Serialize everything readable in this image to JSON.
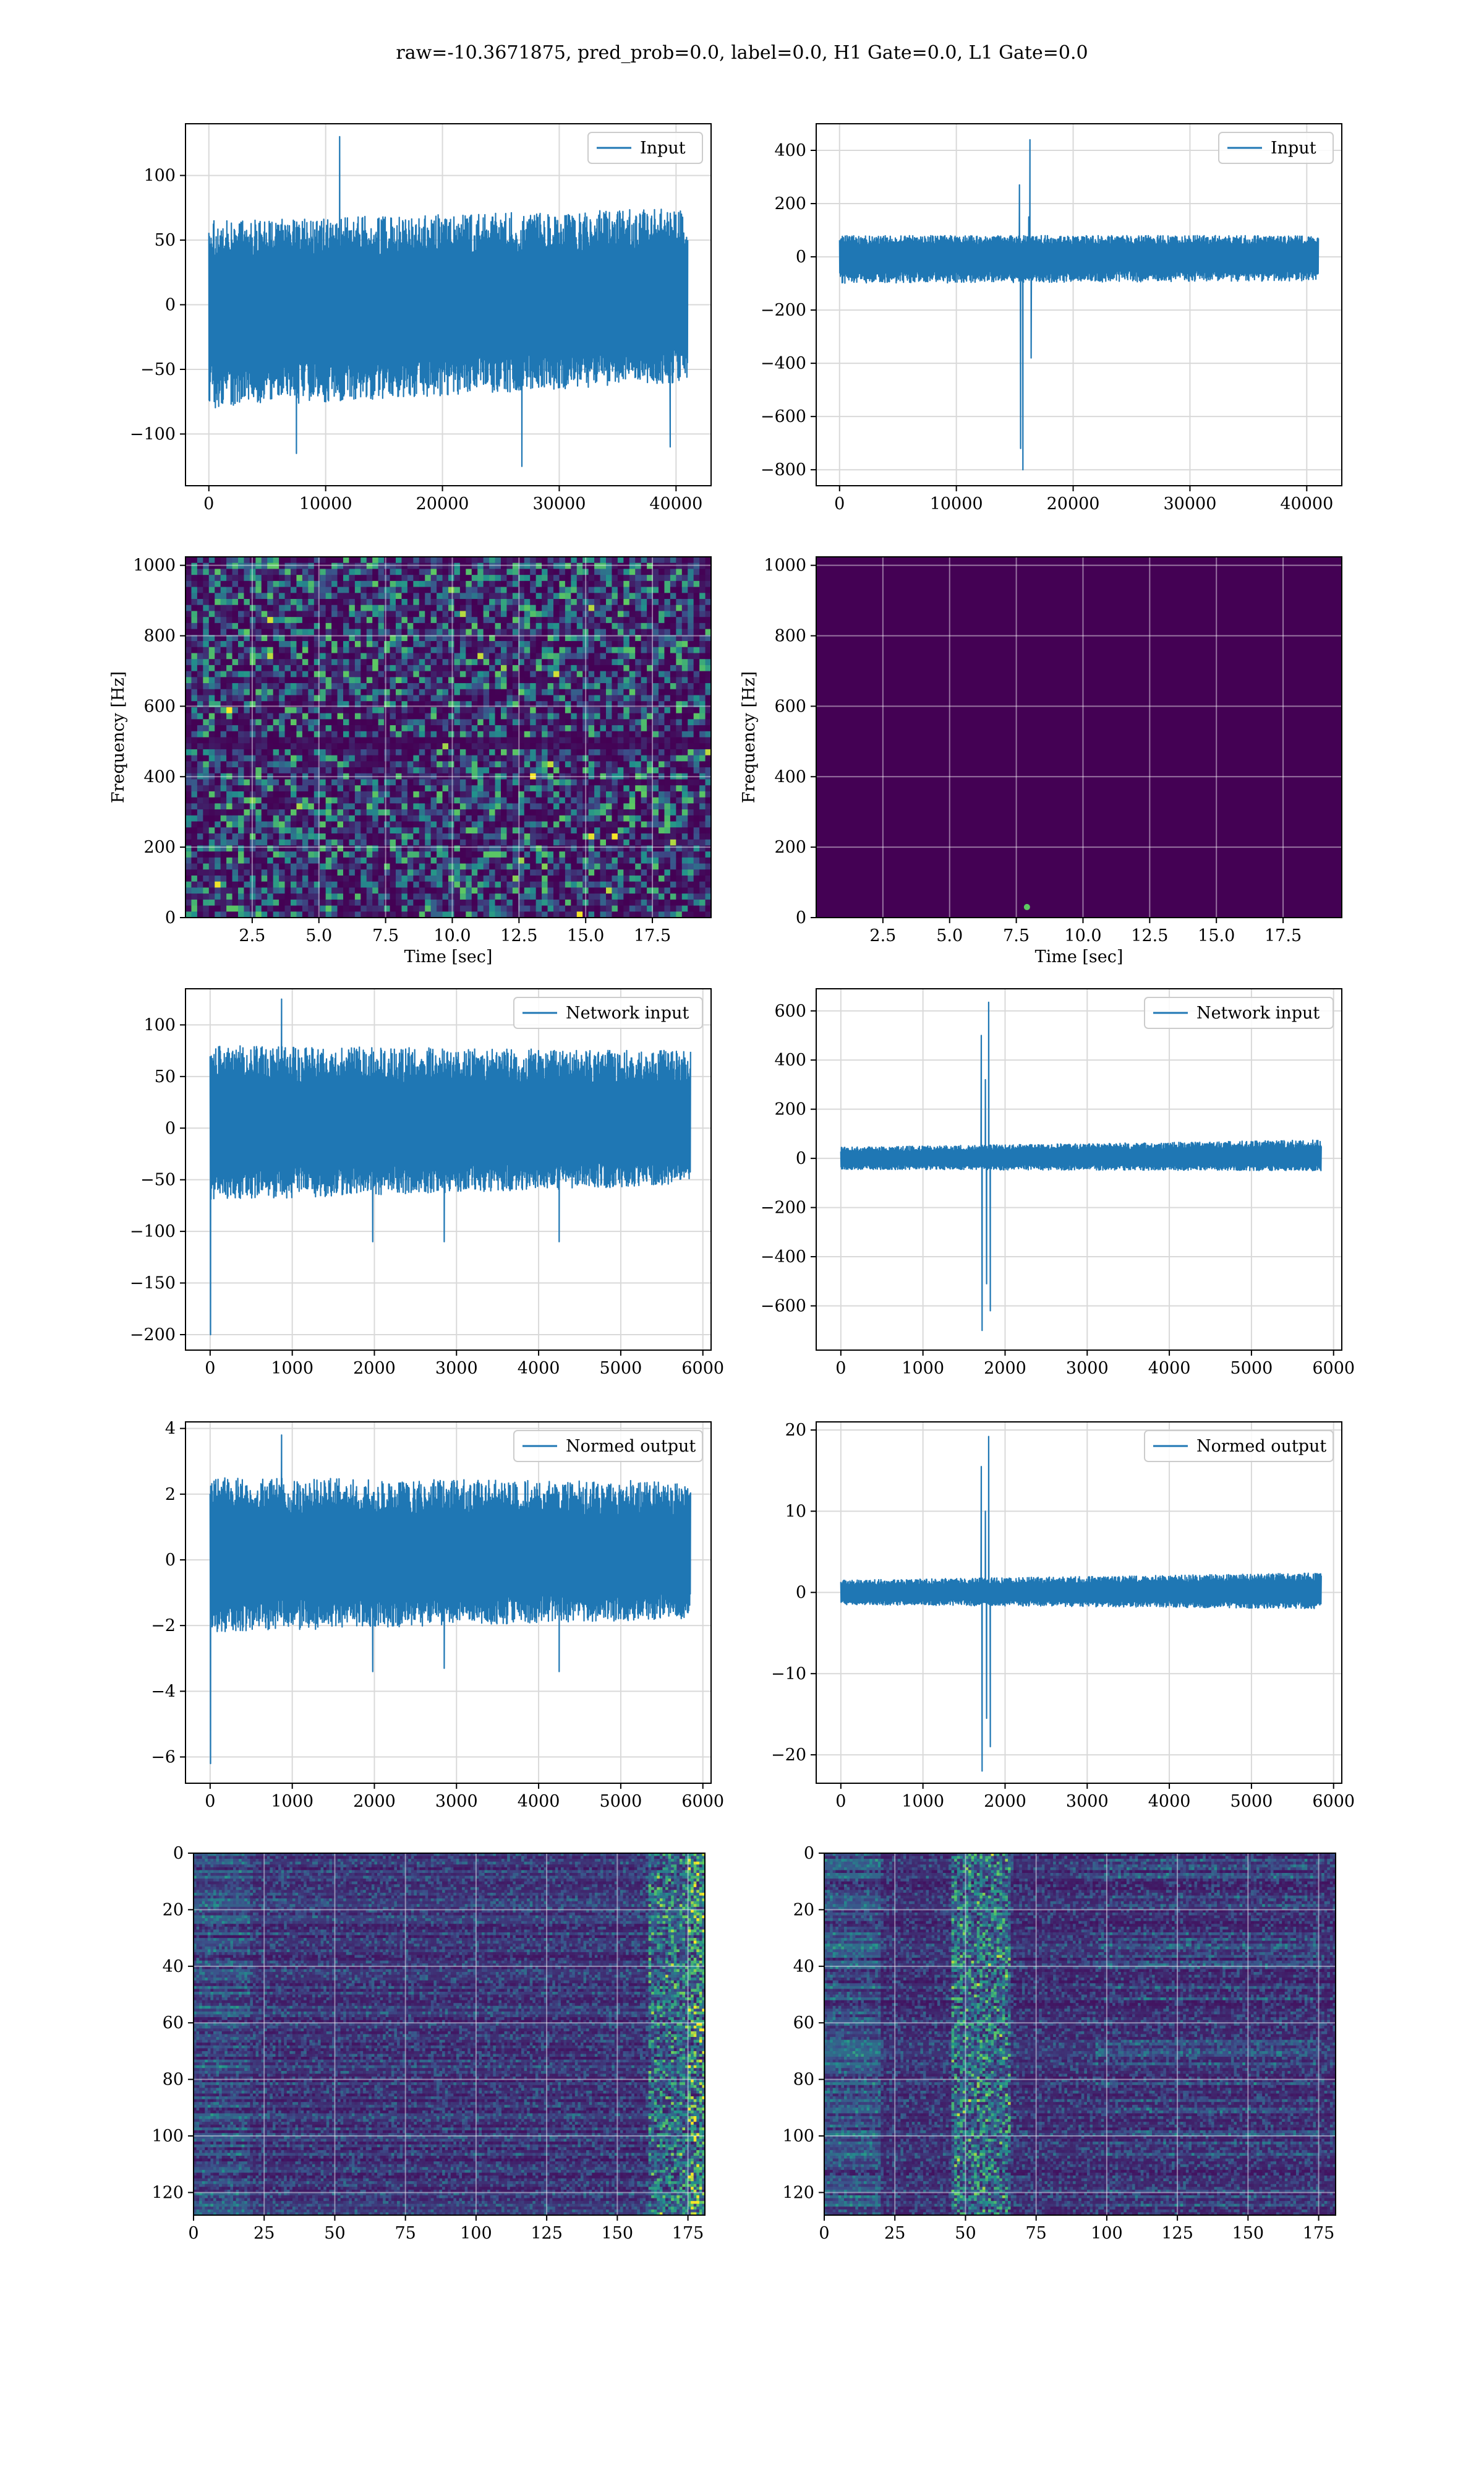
{
  "figure": {
    "title": "raw=-10.3671875, pred_prob=0.0, label=0.0, H1 Gate=0.0, L1 Gate=0.0"
  },
  "colors": {
    "line": "#1f77b4",
    "grid": "#d9d9d9",
    "viridis_dark": "#440154",
    "viridis_blue": "#3b528b",
    "viridis_teal": "#21918c",
    "viridis_green": "#5ec962",
    "viridis_yellow": "#fde725"
  },
  "chart_data": [
    {
      "id": "input-left",
      "type": "line",
      "legend": "Input",
      "legend_placement": "top-right",
      "xlim": [
        -2000,
        43000
      ],
      "ylim": [
        -140,
        140
      ],
      "xticks": [
        0,
        10000,
        20000,
        30000,
        40000
      ],
      "xtick_labels": [
        "0",
        "10000",
        "20000",
        "30000",
        "40000"
      ],
      "yticks": [
        -100,
        -50,
        0,
        50,
        100
      ],
      "ytick_labels": [
        "−100",
        "−50",
        "0",
        "50",
        "100"
      ],
      "grid": true,
      "series": [
        {
          "x_range": [
            0,
            41000
          ],
          "noise_amplitude": 50,
          "envelope_min": [
            -80,
            -60
          ],
          "envelope_max": [
            65,
            75
          ],
          "peaks": [
            {
              "x": 11200,
              "y": 130
            },
            {
              "x": 26800,
              "y": -125
            },
            {
              "x": 7500,
              "y": -115
            },
            {
              "x": 39500,
              "y": -110
            }
          ]
        }
      ],
      "xlabel": "",
      "ylabel": ""
    },
    {
      "id": "input-right",
      "type": "line",
      "legend": "Input",
      "legend_placement": "top-right",
      "xlim": [
        -2000,
        43000
      ],
      "ylim": [
        -860,
        500
      ],
      "xticks": [
        0,
        10000,
        20000,
        30000,
        40000
      ],
      "xtick_labels": [
        "0",
        "10000",
        "20000",
        "30000",
        "40000"
      ],
      "yticks": [
        -800,
        -600,
        -400,
        -200,
        0,
        200,
        400
      ],
      "ytick_labels": [
        "−800",
        "−600",
        "−400",
        "−200",
        "0",
        "200",
        "400"
      ],
      "grid": true,
      "series": [
        {
          "x_range": [
            0,
            41000
          ],
          "noise_amplitude": 40,
          "envelope_min": [
            -100,
            -90
          ],
          "envelope_max": [
            80,
            80
          ],
          "peaks": [
            {
              "x": 15400,
              "y": 270
            },
            {
              "x": 15500,
              "y": -720
            },
            {
              "x": 15700,
              "y": -800
            },
            {
              "x": 16300,
              "y": 440
            },
            {
              "x": 16400,
              "y": -380
            },
            {
              "x": 16200,
              "y": 150
            }
          ]
        }
      ],
      "xlabel": "",
      "ylabel": ""
    },
    {
      "id": "spectrogram-left",
      "type": "heatmap",
      "xlim": [
        0,
        19.7
      ],
      "ylim": [
        0,
        1024
      ],
      "xticks": [
        2.5,
        5.0,
        7.5,
        10.0,
        12.5,
        15.0,
        17.5
      ],
      "xtick_labels": [
        "2.5",
        "5.0",
        "7.5",
        "10.0",
        "12.5",
        "15.0",
        "17.5"
      ],
      "yticks": [
        0,
        200,
        400,
        600,
        800,
        1000
      ],
      "ytick_labels": [
        "0",
        "200",
        "400",
        "600",
        "800",
        "1000"
      ],
      "xlabel": "Time [sec]",
      "ylabel": "Frequency [Hz]",
      "grid": true,
      "colormap": "viridis",
      "pattern": "noise",
      "dark_band_hz": [
        480,
        520
      ]
    },
    {
      "id": "spectrogram-right",
      "type": "heatmap",
      "xlim": [
        0,
        19.7
      ],
      "ylim": [
        0,
        1024
      ],
      "xticks": [
        2.5,
        5.0,
        7.5,
        10.0,
        12.5,
        15.0,
        17.5
      ],
      "xtick_labels": [
        "2.5",
        "5.0",
        "7.5",
        "10.0",
        "12.5",
        "15.0",
        "17.5"
      ],
      "yticks": [
        0,
        200,
        400,
        600,
        800,
        1000
      ],
      "ytick_labels": [
        "0",
        "200",
        "400",
        "600",
        "800",
        "1000"
      ],
      "xlabel": "Time [sec]",
      "ylabel": "Frequency [Hz]",
      "grid": true,
      "colormap": "viridis",
      "pattern": "dark",
      "hotspot": {
        "x": 7.9,
        "y": 30
      }
    },
    {
      "id": "network-input-left",
      "type": "line",
      "legend": "Network input",
      "legend_placement": "top-right",
      "xlim": [
        -300,
        6100
      ],
      "ylim": [
        -215,
        135
      ],
      "xticks": [
        0,
        1000,
        2000,
        3000,
        4000,
        5000,
        6000
      ],
      "xtick_labels": [
        "0",
        "1000",
        "2000",
        "3000",
        "4000",
        "5000",
        "6000"
      ],
      "yticks": [
        -200,
        -150,
        -100,
        -50,
        0,
        50,
        100
      ],
      "ytick_labels": [
        "−200",
        "−150",
        "−100",
        "−50",
        "0",
        "50",
        "100"
      ],
      "grid": true,
      "series": [
        {
          "x_range": [
            0,
            5850
          ],
          "noise_amplitude": 40,
          "envelope_min": [
            -70,
            -55
          ],
          "envelope_max": [
            80,
            75
          ],
          "peaks": [
            {
              "x": 5,
              "y": -200
            },
            {
              "x": 870,
              "y": 125
            },
            {
              "x": 1980,
              "y": -110
            },
            {
              "x": 2850,
              "y": -110
            },
            {
              "x": 4250,
              "y": -110
            }
          ]
        }
      ],
      "xlabel": "",
      "ylabel": ""
    },
    {
      "id": "network-input-right",
      "type": "line",
      "legend": "Network input",
      "legend_placement": "top-right",
      "xlim": [
        -300,
        6100
      ],
      "ylim": [
        -780,
        690
      ],
      "xticks": [
        0,
        1000,
        2000,
        3000,
        4000,
        5000,
        6000
      ],
      "xtick_labels": [
        "0",
        "1000",
        "2000",
        "3000",
        "4000",
        "5000",
        "6000"
      ],
      "yticks": [
        -600,
        -400,
        -200,
        0,
        200,
        400,
        600
      ],
      "ytick_labels": [
        "−600",
        "−400",
        "−200",
        "0",
        "200",
        "400",
        "600"
      ],
      "grid": true,
      "series": [
        {
          "x_range": [
            0,
            5850
          ],
          "noise_amplitude": 22,
          "envelope_min": [
            -45,
            -50
          ],
          "envelope_max": [
            45,
            75
          ],
          "peaks": [
            {
              "x": 1710,
              "y": 500
            },
            {
              "x": 1720,
              "y": -700
            },
            {
              "x": 1760,
              "y": 320
            },
            {
              "x": 1775,
              "y": -510
            },
            {
              "x": 1800,
              "y": 635
            },
            {
              "x": 1820,
              "y": -620
            }
          ]
        }
      ],
      "xlabel": "",
      "ylabel": ""
    },
    {
      "id": "normed-output-left",
      "type": "line",
      "legend": "Normed output",
      "legend_placement": "top-right",
      "xlim": [
        -300,
        6100
      ],
      "ylim": [
        -6.8,
        4.2
      ],
      "xticks": [
        0,
        1000,
        2000,
        3000,
        4000,
        5000,
        6000
      ],
      "xtick_labels": [
        "0",
        "1000",
        "2000",
        "3000",
        "4000",
        "5000",
        "6000"
      ],
      "yticks": [
        -6,
        -4,
        -2,
        0,
        2,
        4
      ],
      "ytick_labels": [
        "−6",
        "−4",
        "−2",
        "0",
        "2",
        "4"
      ],
      "grid": true,
      "series": [
        {
          "x_range": [
            0,
            5850
          ],
          "noise_amplitude": 1.2,
          "envelope_min": [
            -2.2,
            -1.8
          ],
          "envelope_max": [
            2.5,
            2.4
          ],
          "peaks": [
            {
              "x": 5,
              "y": -6.2
            },
            {
              "x": 870,
              "y": 3.8
            },
            {
              "x": 1980,
              "y": -3.4
            },
            {
              "x": 2850,
              "y": -3.3
            },
            {
              "x": 4250,
              "y": -3.4
            }
          ]
        }
      ],
      "xlabel": "",
      "ylabel": ""
    },
    {
      "id": "normed-output-right",
      "type": "line",
      "legend": "Normed output",
      "legend_placement": "top-right",
      "xlim": [
        -300,
        6100
      ],
      "ylim": [
        -23.5,
        21
      ],
      "xticks": [
        0,
        1000,
        2000,
        3000,
        4000,
        5000,
        6000
      ],
      "xtick_labels": [
        "0",
        "1000",
        "2000",
        "3000",
        "4000",
        "5000",
        "6000"
      ],
      "yticks": [
        -20,
        -10,
        0,
        10,
        20
      ],
      "ytick_labels": [
        "−20",
        "−10",
        "0",
        "10",
        "20"
      ],
      "grid": true,
      "series": [
        {
          "x_range": [
            0,
            5850
          ],
          "noise_amplitude": 0.8,
          "envelope_min": [
            -1.5,
            -2.0
          ],
          "envelope_max": [
            1.5,
            2.4
          ],
          "peaks": [
            {
              "x": 1710,
              "y": 15.5
            },
            {
              "x": 1720,
              "y": -22
            },
            {
              "x": 1760,
              "y": 10
            },
            {
              "x": 1775,
              "y": -15.5
            },
            {
              "x": 1800,
              "y": 19.2
            },
            {
              "x": 1820,
              "y": -19
            }
          ]
        }
      ],
      "xlabel": "",
      "ylabel": ""
    },
    {
      "id": "feature-map-left",
      "type": "heatmap",
      "xlim": [
        0,
        181
      ],
      "ylim": [
        128,
        0
      ],
      "xticks": [
        0,
        25,
        50,
        75,
        100,
        125,
        150,
        175
      ],
      "xtick_labels": [
        "0",
        "25",
        "50",
        "75",
        "100",
        "125",
        "150",
        "175"
      ],
      "yticks": [
        0,
        20,
        40,
        60,
        80,
        100,
        120
      ],
      "ytick_labels": [
        "0",
        "20",
        "40",
        "60",
        "80",
        "100",
        "120"
      ],
      "grid": true,
      "colormap": "viridis",
      "pattern": "rows-edges",
      "bright_columns": [
        175,
        180
      ],
      "xlabel": "",
      "ylabel": ""
    },
    {
      "id": "feature-map-right",
      "type": "heatmap",
      "xlim": [
        0,
        181
      ],
      "ylim": [
        128,
        0
      ],
      "xticks": [
        0,
        25,
        50,
        75,
        100,
        125,
        150,
        175
      ],
      "xtick_labels": [
        "0",
        "25",
        "50",
        "75",
        "100",
        "125",
        "150",
        "175"
      ],
      "yticks": [
        0,
        20,
        40,
        60,
        80,
        100,
        120
      ],
      "ytick_labels": [
        "0",
        "20",
        "40",
        "60",
        "80",
        "100",
        "120"
      ],
      "grid": true,
      "colormap": "viridis",
      "pattern": "rows-burst",
      "bright_columns": [
        45,
        65
      ],
      "xlabel": "",
      "ylabel": ""
    }
  ]
}
